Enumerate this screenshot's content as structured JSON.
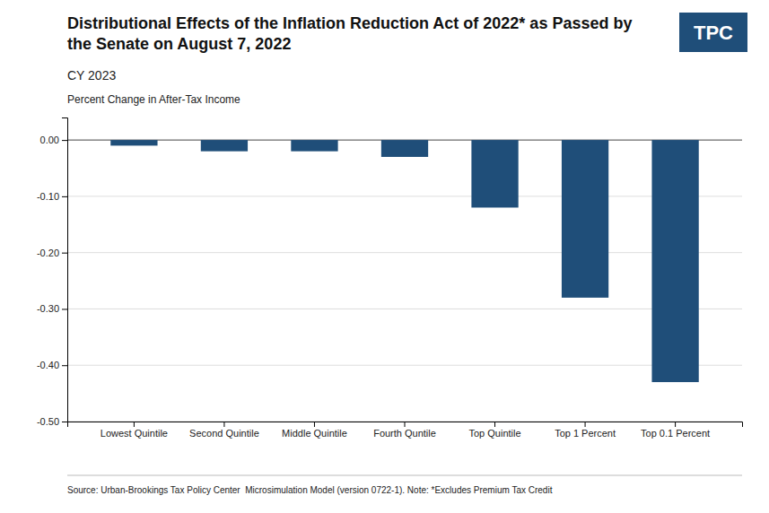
{
  "chart_data": {
    "type": "bar",
    "title": "Distributional Effects of the Inflation Reduction Act of 2022* as Passed by the Senate on August 7, 2022",
    "subtitle": "CY 2023",
    "ylabel": "Percent Change in After-Tax Income",
    "categories": [
      "Lowest Quintile",
      "Second Quintile",
      "Middle Quintile",
      "Fourth Quntile",
      "Top Quintile",
      "Top 1 Percent",
      "Top 0.1 Percent"
    ],
    "values": [
      -0.01,
      -0.02,
      -0.02,
      -0.03,
      -0.12,
      -0.28,
      -0.43
    ],
    "color": "#1F4E79",
    "ylim": [
      -0.5,
      0.04
    ],
    "yticks": [
      {
        "value": 0.0,
        "label": "0.00"
      },
      {
        "value": -0.1,
        "label": "-0.10"
      },
      {
        "value": -0.2,
        "label": "-0.20"
      },
      {
        "value": -0.3,
        "label": "-0.30"
      },
      {
        "value": -0.4,
        "label": "-0.40"
      },
      {
        "value": -0.5,
        "label": "-0.50"
      }
    ],
    "grid": true,
    "annotations": [
      "Source: Urban-Brookings Tax Policy Center  Microsimulation Model (version 0722-1). Note: *Excludes Premium Tax Credit",
      "TPC"
    ]
  }
}
